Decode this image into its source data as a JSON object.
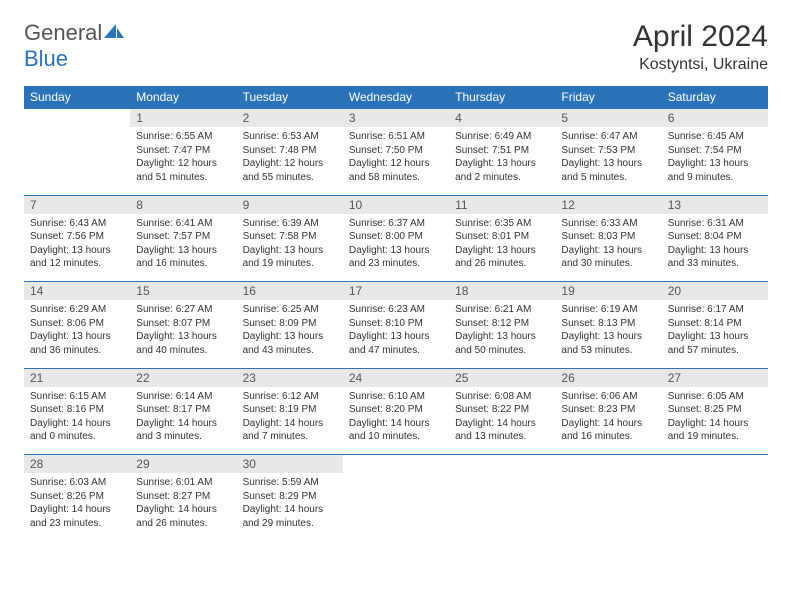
{
  "logo": {
    "word1": "General",
    "word2": "Blue"
  },
  "title": "April 2024",
  "subtitle": "Kostyntsi, Ukraine",
  "colors": {
    "header_bg": "#2b73b8",
    "header_text": "#ffffff",
    "daynum_bg": "#e8e8e8",
    "border": "#2b73b8",
    "body_text": "#333333"
  },
  "weekdays": [
    "Sunday",
    "Monday",
    "Tuesday",
    "Wednesday",
    "Thursday",
    "Friday",
    "Saturday"
  ],
  "weeks": [
    {
      "nums": [
        "",
        "1",
        "2",
        "3",
        "4",
        "5",
        "6"
      ],
      "cells": [
        {
          "sunrise": "",
          "sunset": "",
          "daylight1": "",
          "daylight2": ""
        },
        {
          "sunrise": "Sunrise: 6:55 AM",
          "sunset": "Sunset: 7:47 PM",
          "daylight1": "Daylight: 12 hours",
          "daylight2": "and 51 minutes."
        },
        {
          "sunrise": "Sunrise: 6:53 AM",
          "sunset": "Sunset: 7:48 PM",
          "daylight1": "Daylight: 12 hours",
          "daylight2": "and 55 minutes."
        },
        {
          "sunrise": "Sunrise: 6:51 AM",
          "sunset": "Sunset: 7:50 PM",
          "daylight1": "Daylight: 12 hours",
          "daylight2": "and 58 minutes."
        },
        {
          "sunrise": "Sunrise: 6:49 AM",
          "sunset": "Sunset: 7:51 PM",
          "daylight1": "Daylight: 13 hours",
          "daylight2": "and 2 minutes."
        },
        {
          "sunrise": "Sunrise: 6:47 AM",
          "sunset": "Sunset: 7:53 PM",
          "daylight1": "Daylight: 13 hours",
          "daylight2": "and 5 minutes."
        },
        {
          "sunrise": "Sunrise: 6:45 AM",
          "sunset": "Sunset: 7:54 PM",
          "daylight1": "Daylight: 13 hours",
          "daylight2": "and 9 minutes."
        }
      ]
    },
    {
      "nums": [
        "7",
        "8",
        "9",
        "10",
        "11",
        "12",
        "13"
      ],
      "cells": [
        {
          "sunrise": "Sunrise: 6:43 AM",
          "sunset": "Sunset: 7:56 PM",
          "daylight1": "Daylight: 13 hours",
          "daylight2": "and 12 minutes."
        },
        {
          "sunrise": "Sunrise: 6:41 AM",
          "sunset": "Sunset: 7:57 PM",
          "daylight1": "Daylight: 13 hours",
          "daylight2": "and 16 minutes."
        },
        {
          "sunrise": "Sunrise: 6:39 AM",
          "sunset": "Sunset: 7:58 PM",
          "daylight1": "Daylight: 13 hours",
          "daylight2": "and 19 minutes."
        },
        {
          "sunrise": "Sunrise: 6:37 AM",
          "sunset": "Sunset: 8:00 PM",
          "daylight1": "Daylight: 13 hours",
          "daylight2": "and 23 minutes."
        },
        {
          "sunrise": "Sunrise: 6:35 AM",
          "sunset": "Sunset: 8:01 PM",
          "daylight1": "Daylight: 13 hours",
          "daylight2": "and 26 minutes."
        },
        {
          "sunrise": "Sunrise: 6:33 AM",
          "sunset": "Sunset: 8:03 PM",
          "daylight1": "Daylight: 13 hours",
          "daylight2": "and 30 minutes."
        },
        {
          "sunrise": "Sunrise: 6:31 AM",
          "sunset": "Sunset: 8:04 PM",
          "daylight1": "Daylight: 13 hours",
          "daylight2": "and 33 minutes."
        }
      ]
    },
    {
      "nums": [
        "14",
        "15",
        "16",
        "17",
        "18",
        "19",
        "20"
      ],
      "cells": [
        {
          "sunrise": "Sunrise: 6:29 AM",
          "sunset": "Sunset: 8:06 PM",
          "daylight1": "Daylight: 13 hours",
          "daylight2": "and 36 minutes."
        },
        {
          "sunrise": "Sunrise: 6:27 AM",
          "sunset": "Sunset: 8:07 PM",
          "daylight1": "Daylight: 13 hours",
          "daylight2": "and 40 minutes."
        },
        {
          "sunrise": "Sunrise: 6:25 AM",
          "sunset": "Sunset: 8:09 PM",
          "daylight1": "Daylight: 13 hours",
          "daylight2": "and 43 minutes."
        },
        {
          "sunrise": "Sunrise: 6:23 AM",
          "sunset": "Sunset: 8:10 PM",
          "daylight1": "Daylight: 13 hours",
          "daylight2": "and 47 minutes."
        },
        {
          "sunrise": "Sunrise: 6:21 AM",
          "sunset": "Sunset: 8:12 PM",
          "daylight1": "Daylight: 13 hours",
          "daylight2": "and 50 minutes."
        },
        {
          "sunrise": "Sunrise: 6:19 AM",
          "sunset": "Sunset: 8:13 PM",
          "daylight1": "Daylight: 13 hours",
          "daylight2": "and 53 minutes."
        },
        {
          "sunrise": "Sunrise: 6:17 AM",
          "sunset": "Sunset: 8:14 PM",
          "daylight1": "Daylight: 13 hours",
          "daylight2": "and 57 minutes."
        }
      ]
    },
    {
      "nums": [
        "21",
        "22",
        "23",
        "24",
        "25",
        "26",
        "27"
      ],
      "cells": [
        {
          "sunrise": "Sunrise: 6:15 AM",
          "sunset": "Sunset: 8:16 PM",
          "daylight1": "Daylight: 14 hours",
          "daylight2": "and 0 minutes."
        },
        {
          "sunrise": "Sunrise: 6:14 AM",
          "sunset": "Sunset: 8:17 PM",
          "daylight1": "Daylight: 14 hours",
          "daylight2": "and 3 minutes."
        },
        {
          "sunrise": "Sunrise: 6:12 AM",
          "sunset": "Sunset: 8:19 PM",
          "daylight1": "Daylight: 14 hours",
          "daylight2": "and 7 minutes."
        },
        {
          "sunrise": "Sunrise: 6:10 AM",
          "sunset": "Sunset: 8:20 PM",
          "daylight1": "Daylight: 14 hours",
          "daylight2": "and 10 minutes."
        },
        {
          "sunrise": "Sunrise: 6:08 AM",
          "sunset": "Sunset: 8:22 PM",
          "daylight1": "Daylight: 14 hours",
          "daylight2": "and 13 minutes."
        },
        {
          "sunrise": "Sunrise: 6:06 AM",
          "sunset": "Sunset: 8:23 PM",
          "daylight1": "Daylight: 14 hours",
          "daylight2": "and 16 minutes."
        },
        {
          "sunrise": "Sunrise: 6:05 AM",
          "sunset": "Sunset: 8:25 PM",
          "daylight1": "Daylight: 14 hours",
          "daylight2": "and 19 minutes."
        }
      ]
    },
    {
      "nums": [
        "28",
        "29",
        "30",
        "",
        "",
        "",
        ""
      ],
      "cells": [
        {
          "sunrise": "Sunrise: 6:03 AM",
          "sunset": "Sunset: 8:26 PM",
          "daylight1": "Daylight: 14 hours",
          "daylight2": "and 23 minutes."
        },
        {
          "sunrise": "Sunrise: 6:01 AM",
          "sunset": "Sunset: 8:27 PM",
          "daylight1": "Daylight: 14 hours",
          "daylight2": "and 26 minutes."
        },
        {
          "sunrise": "Sunrise: 5:59 AM",
          "sunset": "Sunset: 8:29 PM",
          "daylight1": "Daylight: 14 hours",
          "daylight2": "and 29 minutes."
        },
        {
          "sunrise": "",
          "sunset": "",
          "daylight1": "",
          "daylight2": ""
        },
        {
          "sunrise": "",
          "sunset": "",
          "daylight1": "",
          "daylight2": ""
        },
        {
          "sunrise": "",
          "sunset": "",
          "daylight1": "",
          "daylight2": ""
        },
        {
          "sunrise": "",
          "sunset": "",
          "daylight1": "",
          "daylight2": ""
        }
      ]
    }
  ]
}
